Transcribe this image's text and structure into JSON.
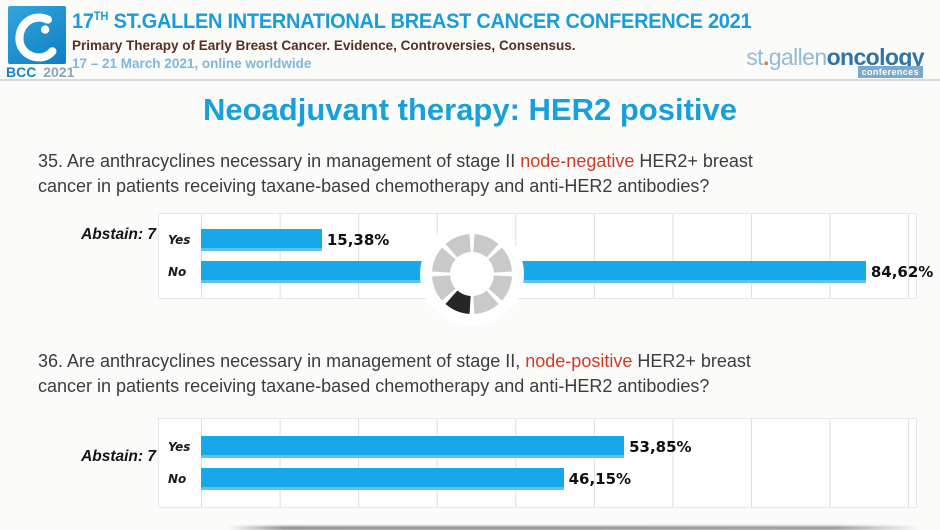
{
  "header": {
    "logo_badge": {
      "acronym": "BCC",
      "year": "2021"
    },
    "title_num": "17",
    "title_sup": "TH",
    "title_rest": " ST.GALLEN INTERNATIONAL BREAST CANCER CONFERENCE 2021",
    "subtitle": "Primary Therapy of Early Breast Cancer. Evidence, Controversies, Consensus.",
    "dates": "17 – 21 March 2021, online worldwide",
    "brand": {
      "st": "st",
      "dot": ".",
      "gallen": "gallen",
      "oncology": "oncology",
      "conferences": "conferences"
    }
  },
  "slide": {
    "title": "Neoadjuvant therapy: HER2 positive"
  },
  "questions": [
    {
      "line1_lead": "35. Are anthracyclines necessary in management of stage II ",
      "highlight": "node-negative",
      "line1_tail": " HER2+ breast",
      "line2": "cancer in patients receiving taxane-based chemotherapy and anti-HER2 antibodies?"
    },
    {
      "line1_lead": "36. Are anthracyclines necessary in management of stage II, ",
      "highlight": "node-positive",
      "line1_tail": " HER2+ breast",
      "line2": "cancer in patients receiving taxane-based chemotherapy and anti-HER2 antibodies?"
    }
  ],
  "chart_data": [
    {
      "type": "bar",
      "orientation": "horizontal",
      "question_ref": "35",
      "abstain_label": "Abstain: 7",
      "categories": [
        "Yes",
        "No"
      ],
      "values": [
        15.38,
        84.62
      ],
      "value_labels": [
        "15,38%",
        "84,62%"
      ],
      "unit": "%",
      "axis_max": 91,
      "gridline_interval": 10,
      "grid": true,
      "legend": false,
      "bar_color": "#18a8ea",
      "loading_spinner": true
    },
    {
      "type": "bar",
      "orientation": "horizontal",
      "question_ref": "36",
      "abstain_label": "Abstain: 7",
      "categories": [
        "Yes",
        "No"
      ],
      "values": [
        53.85,
        46.15
      ],
      "value_labels": [
        "53,85%",
        "46,15%"
      ],
      "unit": "%",
      "axis_max": 91,
      "gridline_interval": 10,
      "grid": true,
      "legend": false,
      "bar_color": "#18a8ea",
      "loading_spinner": false
    }
  ],
  "spinner": {
    "segments": 8,
    "dark_segment_index": 4,
    "segment_color": "#c9c9c9",
    "dark_segment_color": "#262626"
  },
  "colors": {
    "accent_blue": "#189fdc",
    "bar_blue": "#18a8ea",
    "highlight_red": "#cf3a26",
    "subtitle_maroon": "#572e20",
    "date_blue": "#7fb7d9",
    "brand_light_blue": "#93bbd8",
    "brand_dark_blue": "#2e74a8"
  }
}
